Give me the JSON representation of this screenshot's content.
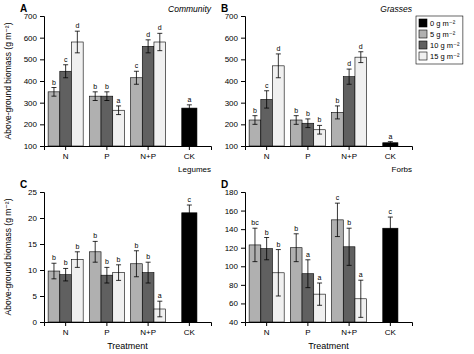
{
  "chart_data": [
    {
      "type": "bar",
      "title": "Community",
      "panel_label": "A",
      "ylabel": "Above-ground biomass (g m⁻²)",
      "annotations": [
        "Legumes"
      ],
      "categories": [
        "N",
        "P",
        "N+P",
        "CK"
      ],
      "series": [
        {
          "name": "0 g m⁻²",
          "color": "#000000",
          "values": [
            null,
            null,
            null,
            275
          ],
          "errors": [
            null,
            null,
            null,
            15
          ],
          "letters": [
            null,
            null,
            null,
            "a"
          ]
        },
        {
          "name": "5 g m⁻²",
          "color": "#b0b0b0",
          "values": [
            350,
            330,
            415,
            null
          ],
          "errors": [
            20,
            20,
            30,
            null
          ],
          "letters": [
            "b",
            "b",
            "c",
            null
          ]
        },
        {
          "name": "10 g m⁻²",
          "color": "#606060",
          "values": [
            445,
            330,
            560,
            null
          ],
          "errors": [
            30,
            20,
            30,
            null
          ],
          "letters": [
            "c",
            "b",
            "d",
            null
          ]
        },
        {
          "name": "15 g m⁻²",
          "color": "#f0f0f0",
          "values": [
            580,
            265,
            580,
            null
          ],
          "errors": [
            50,
            20,
            40,
            null
          ],
          "letters": [
            "d",
            "a",
            "d",
            null
          ]
        }
      ],
      "ylim": [
        100,
        700
      ],
      "yticks": [
        100,
        200,
        300,
        400,
        500,
        600,
        700
      ]
    },
    {
      "type": "bar",
      "title": "Grasses",
      "panel_label": "B",
      "annotations": [
        "Forbs"
      ],
      "categories": [
        "N",
        "P",
        "N+P",
        "CK"
      ],
      "series": [
        {
          "name": "0 g m⁻²",
          "color": "#000000",
          "values": [
            null,
            null,
            null,
            115
          ],
          "errors": [
            null,
            null,
            null,
            5
          ],
          "letters": [
            null,
            null,
            null,
            "a"
          ]
        },
        {
          "name": "5 g m⁻²",
          "color": "#b0b0b0",
          "values": [
            220,
            220,
            255,
            null
          ],
          "errors": [
            20,
            20,
            30,
            null
          ],
          "letters": [
            "b",
            "b",
            "b",
            null
          ]
        },
        {
          "name": "10 g m⁻²",
          "color": "#606060",
          "values": [
            315,
            205,
            420,
            null
          ],
          "errors": [
            40,
            20,
            35,
            null
          ],
          "letters": [
            "c",
            "b",
            "d",
            null
          ]
        },
        {
          "name": "15 g m⁻²",
          "color": "#f0f0f0",
          "values": [
            470,
            175,
            510,
            null
          ],
          "errors": [
            55,
            20,
            25,
            null
          ],
          "letters": [
            "d",
            "b",
            "d",
            null
          ]
        }
      ],
      "ylim": [
        100,
        700
      ],
      "yticks": [
        100,
        200,
        300,
        400,
        500,
        600,
        700
      ],
      "legend": "upper right"
    },
    {
      "type": "bar",
      "panel_label": "C",
      "ylabel": "Above-ground biomass (g m⁻²)",
      "xlabel": "Treatment",
      "categories": [
        "N",
        "P",
        "N+P",
        "CK"
      ],
      "series": [
        {
          "name": "0 g m⁻²",
          "color": "#000000",
          "values": [
            null,
            null,
            null,
            21.0
          ],
          "errors": [
            null,
            null,
            null,
            1.5
          ],
          "letters": [
            null,
            null,
            null,
            "c"
          ]
        },
        {
          "name": "5 g m⁻²",
          "color": "#b0b0b0",
          "values": [
            9.8,
            13.5,
            11.2,
            null
          ],
          "errors": [
            1.5,
            2.0,
            2.5,
            null
          ],
          "letters": [
            "b",
            "b",
            "b",
            null
          ]
        },
        {
          "name": "10 g m⁻²",
          "color": "#606060",
          "values": [
            9.1,
            9.0,
            9.5,
            null
          ],
          "errors": [
            1.2,
            1.5,
            2.0,
            null
          ],
          "letters": [
            "b",
            "b",
            "b",
            null
          ]
        },
        {
          "name": "15 g m⁻²",
          "color": "#f0f0f0",
          "values": [
            12.0,
            9.5,
            2.5,
            null
          ],
          "errors": [
            1.5,
            1.5,
            1.5,
            null
          ],
          "letters": [
            "b",
            "b",
            "a",
            null
          ]
        }
      ],
      "ylim": [
        0,
        25
      ],
      "yticks": [
        0,
        5,
        10,
        15,
        20,
        25
      ]
    },
    {
      "type": "bar",
      "panel_label": "D",
      "xlabel": "Treatment",
      "categories": [
        "N",
        "P",
        "N+P",
        "CK"
      ],
      "series": [
        {
          "name": "0 g m⁻²",
          "color": "#000000",
          "values": [
            null,
            null,
            null,
            141
          ],
          "errors": [
            null,
            null,
            null,
            12
          ],
          "letters": [
            null,
            null,
            null,
            "c"
          ]
        },
        {
          "name": "5 g m⁻²",
          "color": "#b0b0b0",
          "values": [
            123,
            120,
            150,
            null
          ],
          "errors": [
            18,
            15,
            18,
            null
          ],
          "letters": [
            "bc",
            "b",
            "c",
            null
          ]
        },
        {
          "name": "10 g m⁻²",
          "color": "#606060",
          "values": [
            119,
            92,
            121,
            null
          ],
          "errors": [
            12,
            15,
            20,
            null
          ],
          "letters": [
            "b",
            "a",
            "b",
            null
          ]
        },
        {
          "name": "15 g m⁻²",
          "color": "#f0f0f0",
          "values": [
            93,
            70,
            65,
            null
          ],
          "errors": [
            25,
            12,
            20,
            null
          ],
          "letters": [
            "b",
            "a",
            "a",
            null
          ]
        }
      ],
      "ylim": [
        40,
        180
      ],
      "yticks": [
        40,
        60,
        80,
        100,
        120,
        140,
        160,
        180
      ]
    }
  ]
}
